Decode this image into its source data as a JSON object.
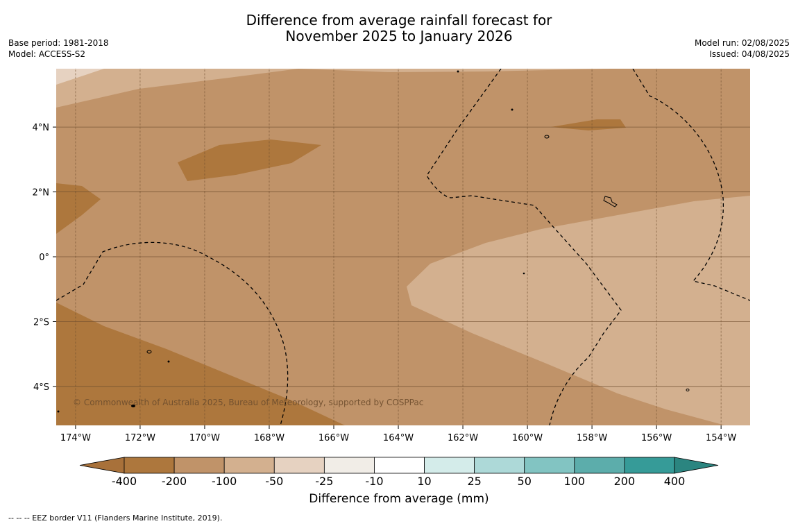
{
  "title": {
    "line1": "Difference from average rainfall forecast for",
    "line2": "November 2025 to January 2026"
  },
  "meta_left": {
    "base_period": "Base period: 1981-2018",
    "model": "Model: ACCESS-S2"
  },
  "meta_right": {
    "model_run": "Model run: 02/08/2025",
    "issued": "Issued: 04/08/2025"
  },
  "map": {
    "lon_range": [
      -174.6,
      -153.1
    ],
    "lat_range": [
      -5.2,
      5.8
    ],
    "lon_ticks": [
      {
        "value": -174,
        "label": "174°W"
      },
      {
        "value": -172,
        "label": "172°W"
      },
      {
        "value": -170,
        "label": "170°W"
      },
      {
        "value": -168,
        "label": "168°W"
      },
      {
        "value": -166,
        "label": "166°W"
      },
      {
        "value": -164,
        "label": "164°W"
      },
      {
        "value": -162,
        "label": "162°W"
      },
      {
        "value": -160,
        "label": "160°W"
      },
      {
        "value": -158,
        "label": "158°W"
      },
      {
        "value": -156,
        "label": "156°W"
      },
      {
        "value": -154,
        "label": "154°W"
      }
    ],
    "lat_ticks": [
      {
        "value": 4,
        "label": "4°N"
      },
      {
        "value": 2,
        "label": "2°N"
      },
      {
        "value": 0,
        "label": "0°"
      },
      {
        "value": -2,
        "label": "2°S"
      },
      {
        "value": -4,
        "label": "4°S"
      }
    ],
    "copyright": "© Commonwealth of Australia 2025, Bureau of Meteorology, supported by COSPPac",
    "grid_color": "#6e4e2e"
  },
  "colorbar": {
    "title": "Difference from average (mm)",
    "labels": [
      "-400",
      "-200",
      "-100",
      "-50",
      "-25",
      "-10",
      "10",
      "25",
      "50",
      "100",
      "200",
      "400"
    ],
    "colors": [
      "#a8713a",
      "#ad773d",
      "#c09369",
      "#d3b08f",
      "#e6d2c1",
      "#f1ede7",
      "#ffffff",
      "#d4ecea",
      "#add9d8",
      "#82c4c2",
      "#5cadab",
      "#369b98",
      "#2b8580"
    ]
  },
  "footnote": "--  --  -- EEZ border V11 (Flanders Marine Institute, 2019)."
}
